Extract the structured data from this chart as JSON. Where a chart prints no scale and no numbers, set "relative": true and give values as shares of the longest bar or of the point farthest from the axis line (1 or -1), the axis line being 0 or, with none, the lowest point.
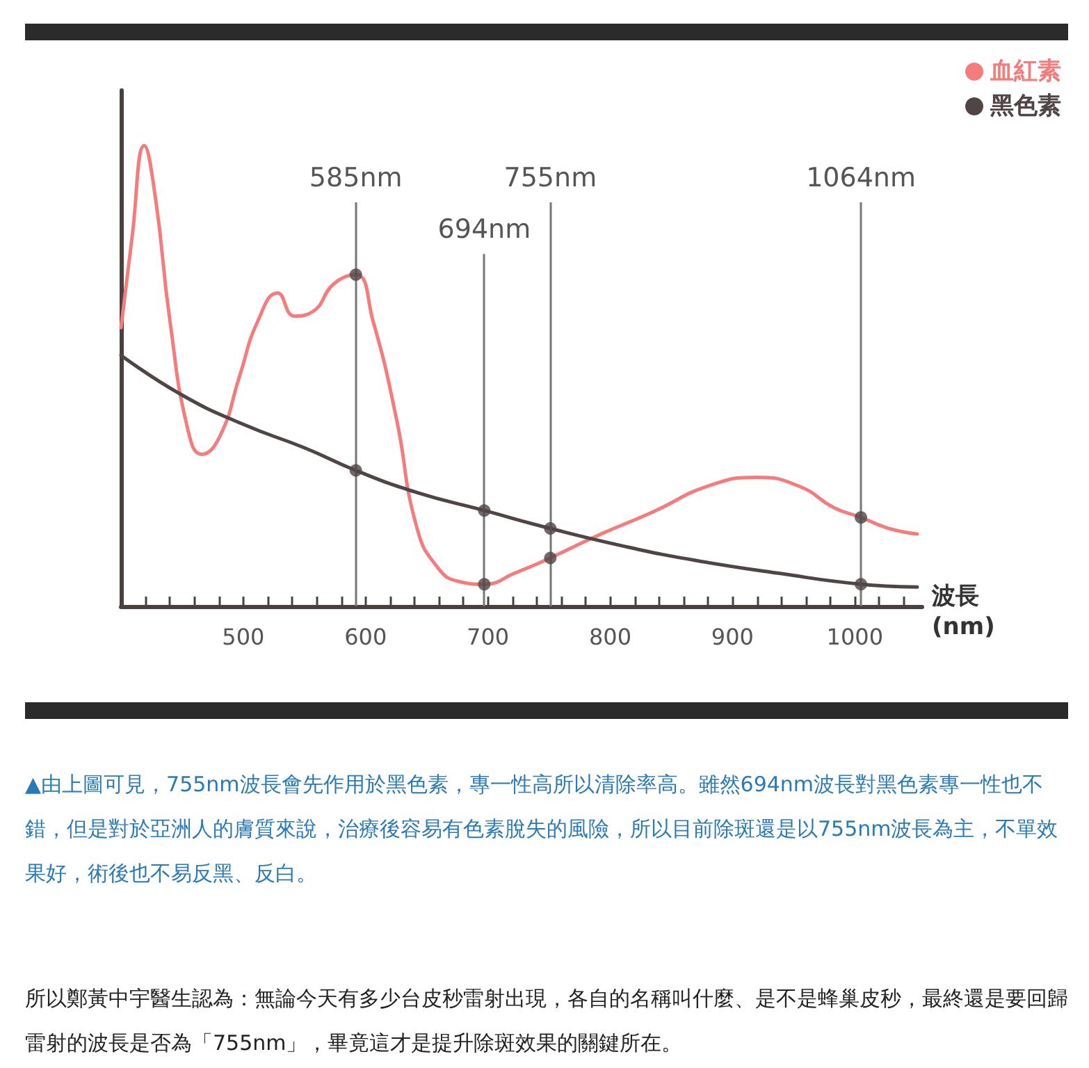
{
  "chart_data": {
    "type": "line",
    "relative": true,
    "xlabel": "波長\n(nm)",
    "legend": "top right",
    "grid": false,
    "xlim": [
      400,
      1055
    ],
    "xticks": [
      {
        "value": 420,
        "label": null
      },
      {
        "value": 440,
        "label": null
      },
      {
        "value": 460,
        "label": null
      },
      {
        "value": 480,
        "label": null
      },
      500,
      {
        "value": 520,
        "label": null
      },
      {
        "value": 540,
        "label": null
      },
      {
        "value": 560,
        "label": null
      },
      {
        "value": 580,
        "label": null
      },
      600,
      {
        "value": 620,
        "label": null
      },
      {
        "value": 640,
        "label": null
      },
      {
        "value": 660,
        "label": null
      },
      {
        "value": 680,
        "label": null
      },
      700,
      {
        "value": 720,
        "label": null
      },
      {
        "value": 740,
        "label": null
      },
      {
        "value": 760,
        "label": null
      },
      {
        "value": 780,
        "label": null
      },
      800,
      {
        "value": 820,
        "label": null
      },
      {
        "value": 840,
        "label": null
      },
      {
        "value": 860,
        "label": null
      },
      {
        "value": 880,
        "label": null
      },
      900,
      {
        "value": 920,
        "label": null
      },
      {
        "value": 940,
        "label": null
      },
      {
        "value": 960,
        "label": null
      },
      {
        "value": 980,
        "label": null
      },
      1000,
      {
        "value": 1020,
        "label": null
      },
      {
        "value": 1040,
        "label": null
      }
    ],
    "series": [
      {
        "name": "血紅素",
        "color": "#f47c7c",
        "marker": "none",
        "x": [
          400,
          409,
          419,
          428,
          440,
          455,
          466,
          481,
          497,
          512,
          528,
          542,
          557,
          574,
          592,
          606,
          625,
          642,
          659,
          676,
          697,
          722,
          751,
          790,
          835,
          881,
          920,
          955,
          983,
          1005,
          1028,
          1051
        ],
        "values": [
          0.605,
          0.8,
          1.0,
          0.89,
          0.62,
          0.38,
          0.33,
          0.37,
          0.5,
          0.62,
          0.68,
          0.63,
          0.64,
          0.7,
          0.72,
          0.62,
          0.41,
          0.17,
          0.084,
          0.054,
          0.048,
          0.072,
          0.105,
          0.154,
          0.205,
          0.262,
          0.28,
          0.26,
          0.214,
          0.193,
          0.169,
          0.157
        ]
      },
      {
        "name": "黑色素",
        "color": "#4f4545",
        "marker": "none",
        "x": [
          400,
          449,
          500,
          551,
          592,
          642,
          697,
          751,
          812,
          869,
          937,
          1005,
          1051
        ],
        "values": [
          0.545,
          0.46,
          0.395,
          0.343,
          0.295,
          0.247,
          0.208,
          0.169,
          0.13,
          0.1,
          0.072,
          0.048,
          0.042
        ]
      },
      {
        "type": "scatter",
        "color": "#4f4545",
        "marker": "circle",
        "x": [
          592,
          697,
          751,
          1005,
          592,
          697,
          751,
          1005
        ],
        "values": [
          0.72,
          0.048,
          0.105,
          0.193,
          0.295,
          0.208,
          0.169,
          0.048
        ]
      }
    ],
    "ref_lines": [
      {
        "axis": "x",
        "value": 592,
        "label": "585nm",
        "color": "#777777"
      },
      {
        "axis": "x",
        "value": 697,
        "label": "694nm",
        "color": "#777777"
      },
      {
        "axis": "x",
        "value": 751,
        "label": "755nm",
        "color": "#777777"
      },
      {
        "axis": "x",
        "value": 1005,
        "label": "1064nm",
        "color": "#777777"
      }
    ],
    "annotations": [
      "▲由上圖可見，755nm波長會先作用於黑色素，專一性高所以清除率高。雖然694nm波長對黑色素專一性也不錯，但是對於亞洲人的膚質來說，治療後容易有色素脫失的風險，所以目前除斑還是以755nm波長為主，不單效果好，術後也不易反黑、反白。",
      "所以鄭黃中宇醫生認為：無論今天有多少台皮秒雷射出現，各自的名稱叫什麼、是不是蜂巢皮秒，最終還是要回歸雷射的波長是否為「755nm」，畢竟這才是提升除斑效果的關鍵所在。"
    ]
  }
}
